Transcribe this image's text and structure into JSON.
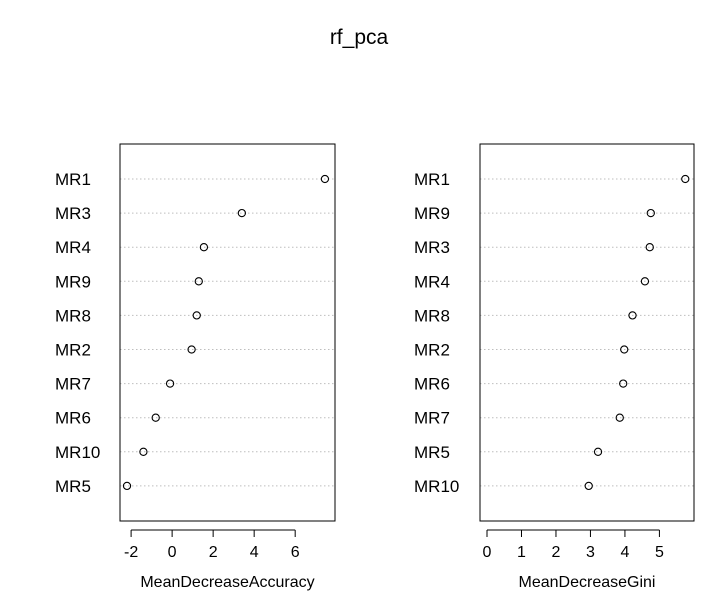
{
  "title": "rf_pca",
  "colors": {
    "line": "#000000",
    "grid": "#bebebe",
    "background": "#ffffff"
  },
  "chart_data": [
    {
      "type": "scatter",
      "style": "dotchart",
      "xlabel": "MeanDecreaseAccuracy",
      "xlim": [
        -2.2,
        7.6
      ],
      "xticks": [
        -2,
        0,
        2,
        4,
        6
      ],
      "categories": [
        "MR1",
        "MR3",
        "MR4",
        "MR9",
        "MR8",
        "MR2",
        "MR7",
        "MR6",
        "MR10",
        "MR5"
      ],
      "values": [
        7.45,
        3.4,
        1.55,
        1.3,
        1.2,
        0.95,
        -0.1,
        -0.8,
        -1.4,
        -2.2
      ],
      "grid": "dotted horizontal"
    },
    {
      "type": "scatter",
      "style": "dotchart",
      "xlabel": "MeanDecreaseGini",
      "xlim": [
        0,
        5.8
      ],
      "xticks": [
        0,
        1,
        2,
        3,
        4,
        5
      ],
      "categories": [
        "MR1",
        "MR9",
        "MR3",
        "MR4",
        "MR8",
        "MR2",
        "MR6",
        "MR7",
        "MR5",
        "MR10"
      ],
      "values": [
        5.75,
        4.75,
        4.72,
        4.58,
        4.22,
        3.98,
        3.95,
        3.85,
        3.22,
        2.95
      ],
      "grid": "dotted horizontal"
    }
  ]
}
